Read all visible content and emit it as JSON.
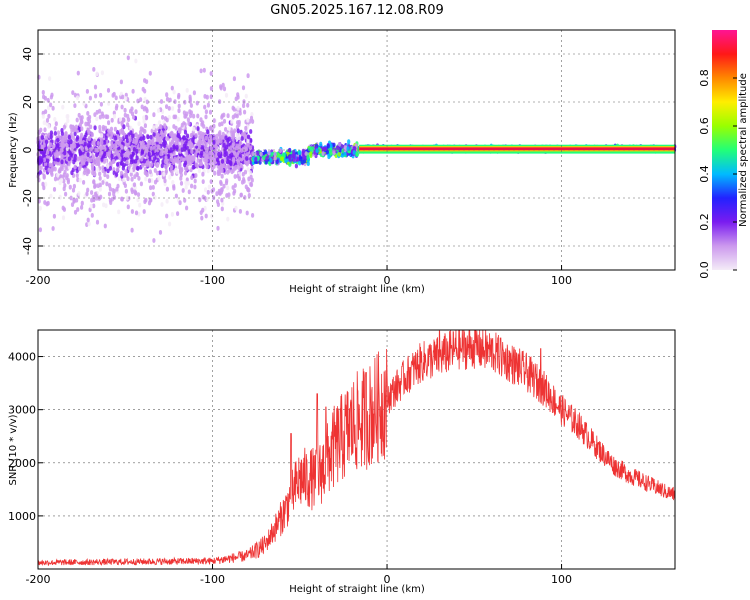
{
  "title": "GN05.2025.167.12.08.R09",
  "chart_data": [
    {
      "type": "heatmap",
      "xlabel": "Height of straight line (km)",
      "ylabel": "Frequency (Hz)",
      "xlim": [
        -200,
        165
      ],
      "ylim": [
        -50,
        50
      ],
      "xticks": [
        -200,
        -100,
        0,
        100
      ],
      "yticks": [
        -40,
        -20,
        0,
        20,
        40
      ],
      "grid": true,
      "colorbar": {
        "label": "Normalized spectral amplitude",
        "range": [
          0,
          1
        ],
        "ticks": [
          "0.0",
          "0.2",
          "0.4",
          "0.6",
          "0.8"
        ],
        "colormap": [
          "#f4ecf7",
          "#cc99ee",
          "#7a1cf0",
          "#2222ff",
          "#00bbff",
          "#22ff77",
          "#99ff00",
          "#ffee00",
          "#ff8800",
          "#ff1818",
          "#ff1493"
        ]
      },
      "regions": [
        {
          "name": "noise",
          "x_range": [
            -200,
            -77
          ],
          "center_hz": 0,
          "spread_hz": 15,
          "amplitude": 0.15
        },
        {
          "name": "transition",
          "x_range": [
            -77,
            -16
          ],
          "center_hz": -3,
          "spread_hz": 4,
          "amplitude": 0.5
        },
        {
          "name": "signal",
          "x_range": [
            -16,
            165
          ],
          "center_hz": 0.5,
          "spread_hz": 1.5,
          "amplitude": 0.95
        }
      ]
    },
    {
      "type": "line",
      "xlabel": "Height of straight line (km)",
      "ylabel": "SNR (10 * v/v)",
      "xlim": [
        -200,
        165
      ],
      "ylim": [
        0,
        4500
      ],
      "xticks": [
        -200,
        -100,
        0,
        100
      ],
      "yticks": [
        1000,
        2000,
        3000,
        4000
      ],
      "grid": true,
      "color": "#ee3333",
      "envelope": {
        "x": [
          -200,
          -100,
          -80,
          -70,
          -60,
          -50,
          -40,
          -30,
          -20,
          -10,
          0,
          10,
          20,
          30,
          40,
          50,
          60,
          70,
          80,
          90,
          100,
          110,
          120,
          130,
          140,
          150,
          160,
          165
        ],
        "y": [
          120,
          150,
          250,
          450,
          1000,
          1700,
          1700,
          2300,
          2700,
          2900,
          3200,
          3600,
          3900,
          4000,
          4150,
          4180,
          4100,
          3900,
          3700,
          3400,
          3000,
          2700,
          2300,
          1950,
          1750,
          1600,
          1450,
          1400
        ]
      },
      "spikes": [
        {
          "x": -55,
          "y": 2550
        },
        {
          "x": -40,
          "y": 3300
        },
        {
          "x": -35,
          "y": 3050
        },
        {
          "x": -12,
          "y": 3700
        },
        {
          "x": 30,
          "y": 4480
        },
        {
          "x": 65,
          "y": 4350
        },
        {
          "x": 88,
          "y": 4150
        }
      ]
    }
  ]
}
